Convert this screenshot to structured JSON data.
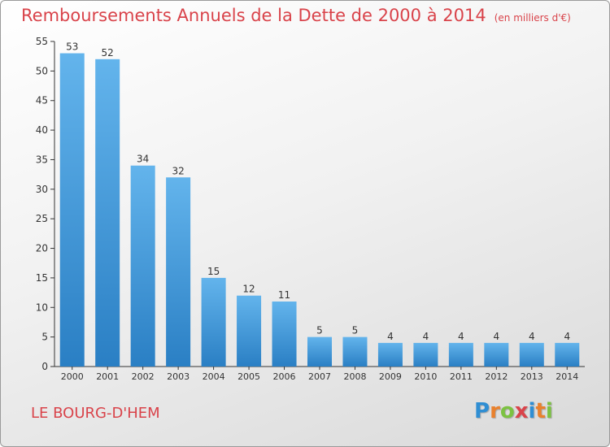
{
  "title": "Remboursements Annuels de la Dette de 2000 à 2014",
  "unit": "(en milliers d'€)",
  "commune": "LE BOURG-D'HEM",
  "logo": {
    "letters": [
      "P",
      "r",
      "o",
      "x",
      "i",
      "t",
      "i"
    ],
    "colors": [
      "#2f8ed3",
      "#e9812d",
      "#7cc242",
      "#d9434a",
      "#2f8ed3",
      "#e9812d",
      "#7cc242"
    ]
  },
  "colors": {
    "bar_light": "#63b4ec",
    "bar_dark": "#2a7fc4",
    "title": "#d9434a"
  },
  "chart_data": {
    "type": "bar",
    "categories": [
      "2000",
      "2001",
      "2002",
      "2003",
      "2004",
      "2005",
      "2006",
      "2007",
      "2008",
      "2009",
      "2010",
      "2011",
      "2012",
      "2013",
      "2014"
    ],
    "values": [
      53,
      52,
      34,
      32,
      15,
      12,
      11,
      5,
      5,
      4,
      4,
      4,
      4,
      4,
      4
    ],
    "ylim": [
      0,
      55
    ],
    "yticks": [
      0,
      5,
      10,
      15,
      20,
      25,
      30,
      35,
      40,
      45,
      50,
      55
    ],
    "grid": false,
    "legend": "none"
  }
}
